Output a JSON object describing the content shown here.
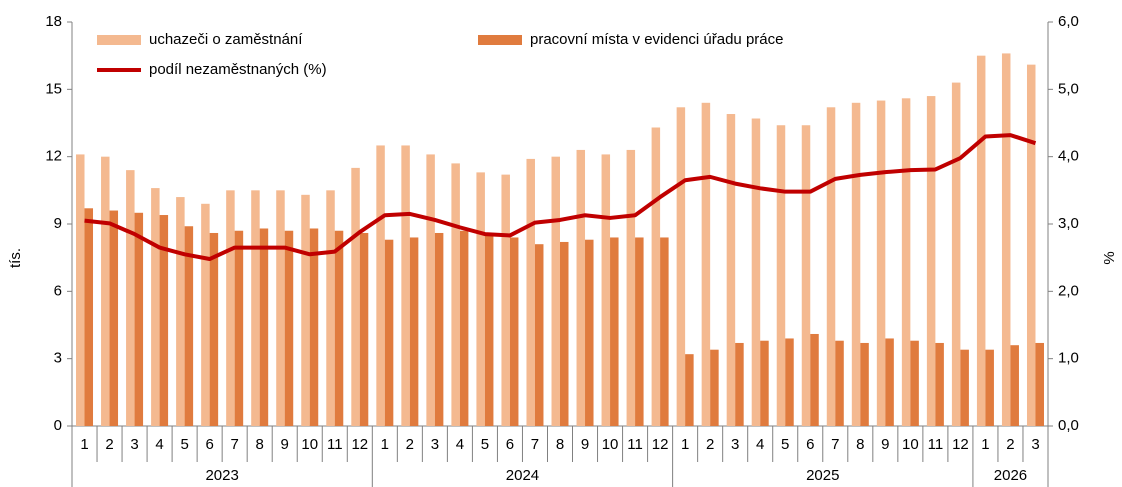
{
  "chart_data": {
    "type": "bar-line",
    "categories": [
      "1",
      "2",
      "3",
      "4",
      "5",
      "6",
      "7",
      "8",
      "9",
      "10",
      "11",
      "12",
      "1",
      "2",
      "3",
      "4",
      "5",
      "6",
      "7",
      "8",
      "9",
      "10",
      "11",
      "12",
      "1",
      "2",
      "3",
      "4",
      "5",
      "6",
      "7",
      "8",
      "9",
      "10",
      "11",
      "12",
      "1",
      "2",
      "3"
    ],
    "category_groups": [
      "2023",
      "2024",
      "2025",
      "2026"
    ],
    "ylabel": "tís.",
    "y2label": "%",
    "ylim": [
      0,
      18
    ],
    "yticks": [
      0,
      3,
      6,
      9,
      12,
      15,
      18
    ],
    "y2lim": [
      0,
      6
    ],
    "y2ticks": [
      {
        "value": 0,
        "label": "0,0"
      },
      {
        "value": 1,
        "label": "1,0"
      },
      {
        "value": 2,
        "label": "2,0"
      },
      {
        "value": 3,
        "label": "3,0"
      },
      {
        "value": 4,
        "label": "4,0"
      },
      {
        "value": 5,
        "label": "5,0"
      },
      {
        "value": 6,
        "label": "6,0"
      }
    ],
    "series": [
      {
        "name": "uchazeči o zaměstnání",
        "color": "#f4b990",
        "kind": "bar",
        "values": [
          12.1,
          12.0,
          11.4,
          10.6,
          10.2,
          9.9,
          10.5,
          10.5,
          10.5,
          10.3,
          10.5,
          11.5,
          12.5,
          12.5,
          12.1,
          11.7,
          11.3,
          11.2,
          11.9,
          12.0,
          12.3,
          12.1,
          12.3,
          13.3,
          14.2,
          14.4,
          13.9,
          13.7,
          13.4,
          13.4,
          14.2,
          14.4,
          14.5,
          14.6,
          14.7,
          15.3,
          16.5,
          16.6,
          16.1
        ]
      },
      {
        "name": "pracovní místa v evidenci úřadu práce",
        "color": "#e07b3e",
        "kind": "bar",
        "values": [
          9.7,
          9.6,
          9.5,
          9.4,
          8.9,
          8.6,
          8.7,
          8.8,
          8.7,
          8.8,
          8.7,
          8.6,
          8.3,
          8.4,
          8.6,
          8.7,
          8.5,
          8.4,
          8.1,
          8.2,
          8.3,
          8.4,
          8.4,
          8.4,
          3.2,
          3.4,
          3.7,
          3.8,
          3.9,
          4.1,
          3.8,
          3.7,
          3.9,
          3.8,
          3.7,
          3.4,
          3.4,
          3.6,
          3.7
        ]
      },
      {
        "name": "podíl nezaměstnaných (%)",
        "color": "#c00000",
        "kind": "line",
        "axis": "y2",
        "values": [
          3.05,
          3.01,
          2.85,
          2.65,
          2.55,
          2.48,
          2.65,
          2.65,
          2.65,
          2.55,
          2.59,
          2.88,
          3.13,
          3.15,
          3.06,
          2.95,
          2.85,
          2.83,
          3.02,
          3.06,
          3.13,
          3.09,
          3.13,
          3.4,
          3.65,
          3.7,
          3.6,
          3.53,
          3.48,
          3.48,
          3.67,
          3.73,
          3.77,
          3.8,
          3.81,
          3.98,
          4.3,
          4.32,
          4.2
        ]
      }
    ]
  }
}
